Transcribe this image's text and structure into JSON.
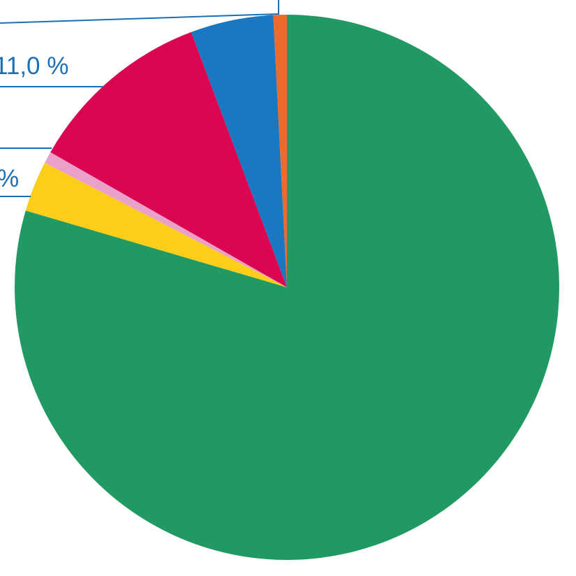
{
  "chart_data": {
    "type": "pie",
    "title": "",
    "start_angle_deg": 0,
    "direction": "clockwise",
    "slices": [
      {
        "value": 79.3,
        "color": "#209a62"
      },
      {
        "value": 3.0,
        "color": "#fcce19"
      },
      {
        "value": 0.7,
        "color": "#e9a1c9"
      },
      {
        "value": 11.0,
        "color": "#db0651",
        "label": "11,0 %"
      },
      {
        "value": 4.9,
        "color": "#1a77c2"
      },
      {
        "value": 0.8,
        "color": "#ed6b2a"
      }
    ],
    "partial_labels": [
      "%"
    ],
    "leader_line_color": "#1a6fb5"
  }
}
